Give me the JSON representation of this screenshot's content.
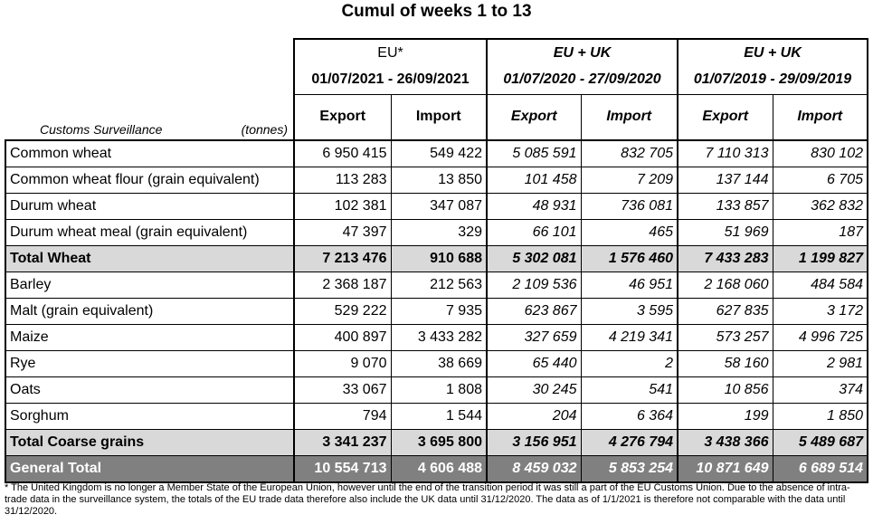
{
  "title": "Cumul of weeks 1 to 13",
  "header": {
    "row_label": "Customs Surveillance",
    "unit": "(tonnes)",
    "groups": [
      {
        "name": "EU*",
        "period": "01/07/2021 - 26/09/2021",
        "export": "Export",
        "import": "Import"
      },
      {
        "name": "EU + UK",
        "period": "01/07/2020 - 27/09/2020",
        "export": "Export",
        "import": "Import"
      },
      {
        "name": "EU + UK",
        "period": "01/07/2019 - 29/09/2019",
        "export": "Export",
        "import": "Import"
      }
    ]
  },
  "rows": [
    {
      "label": "Common wheat",
      "type": "normal",
      "values": [
        "6 950 415",
        "549 422",
        "5 085 591",
        "832 705",
        "7 110 313",
        "830 102"
      ]
    },
    {
      "label": "Common wheat flour (grain equivalent)",
      "type": "normal",
      "values": [
        "113 283",
        "13 850",
        "101 458",
        "7 209",
        "137 144",
        "6 705"
      ]
    },
    {
      "label": "Durum wheat",
      "type": "normal",
      "values": [
        "102 381",
        "347 087",
        "48 931",
        "736 081",
        "133 857",
        "362 832"
      ]
    },
    {
      "label": "Durum wheat meal (grain equivalent)",
      "type": "normal",
      "values": [
        "47 397",
        "329",
        "66 101",
        "465",
        "51 969",
        "187"
      ]
    },
    {
      "label": "Total Wheat",
      "type": "total",
      "values": [
        "7 213 476",
        "910 688",
        "5 302 081",
        "1 576 460",
        "7 433 283",
        "1 199 827"
      ]
    },
    {
      "label": "Barley",
      "type": "normal",
      "values": [
        "2 368 187",
        "212 563",
        "2 109 536",
        "46 951",
        "2 168 060",
        "484 584"
      ]
    },
    {
      "label": "Malt (grain equivalent)",
      "type": "normal",
      "values": [
        "529 222",
        "7 935",
        "623 867",
        "3 595",
        "627 835",
        "3 172"
      ]
    },
    {
      "label": "Maize",
      "type": "normal",
      "values": [
        "400 897",
        "3 433 282",
        "327 659",
        "4 219 341",
        "573 257",
        "4 996 725"
      ]
    },
    {
      "label": "Rye",
      "type": "normal",
      "values": [
        "9 070",
        "38 669",
        "65 440",
        "2",
        "58 160",
        "2 981"
      ]
    },
    {
      "label": "Oats",
      "type": "normal",
      "values": [
        "33 067",
        "1 808",
        "30 245",
        "541",
        "10 856",
        "374"
      ]
    },
    {
      "label": "Sorghum",
      "type": "normal",
      "values": [
        "794",
        "1 544",
        "204",
        "6 364",
        "199",
        "1 850"
      ]
    },
    {
      "label": "Total Coarse grains",
      "type": "total",
      "values": [
        "3 341 237",
        "3 695 800",
        "3 156 951",
        "4 276 794",
        "3 438 366",
        "5 489 687"
      ]
    },
    {
      "label": "General Total",
      "type": "grand",
      "values": [
        "10 554 713",
        "4 606 488",
        "8 459 032",
        "5 853 254",
        "10 871 649",
        "6 689 514"
      ]
    }
  ],
  "footnote": "* The United Kingdom is no longer a Member State of the European Union, however until the end of the transition period it was still a part of the EU Customs Union. Due to the absence of intra-trade data in the surveillance system, the totals of the EU trade data  therefore also include the UK data until 31/12/2020. The data as of 1/1/2021 is therefore not comparable with the data until 31/12/2020."
}
